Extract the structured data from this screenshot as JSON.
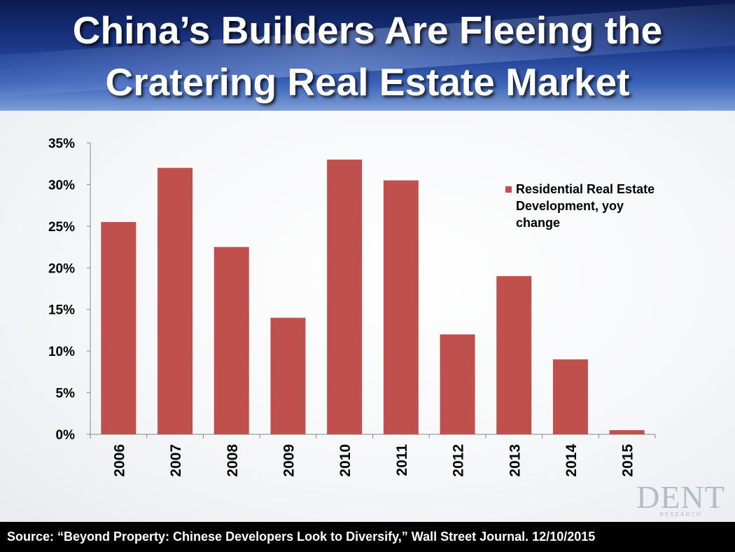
{
  "title": {
    "line1": "China’s Builders Are Fleeing the",
    "line2": "Cratering Real Estate Market"
  },
  "chart_data": {
    "type": "bar",
    "categories": [
      "2006",
      "2007",
      "2008",
      "2009",
      "2010",
      "2011",
      "2012",
      "2013",
      "2014",
      "2015"
    ],
    "series": [
      {
        "name": "Residential Real Estate Development, yoy change",
        "values": [
          25.5,
          32.0,
          22.5,
          14.0,
          33.0,
          30.5,
          12.0,
          19.0,
          9.0,
          0.5
        ]
      }
    ],
    "yticks": [
      "0%",
      "5%",
      "10%",
      "15%",
      "20%",
      "25%",
      "30%",
      "35%"
    ],
    "ylim": [
      0,
      35
    ],
    "unit": "%",
    "bar_color": "#c0504d",
    "legend_position": "top-right",
    "grid": false
  },
  "legend": {
    "line1": "Residential Real Estate",
    "line2": "Development, yoy",
    "line3": "change"
  },
  "logo": {
    "name": "DENT",
    "sub": "RESEARCH"
  },
  "footer": {
    "source": "Source: “Beyond Property: Chinese Developers Look to Diversify,” Wall Street Journal. 12/10/2015"
  }
}
